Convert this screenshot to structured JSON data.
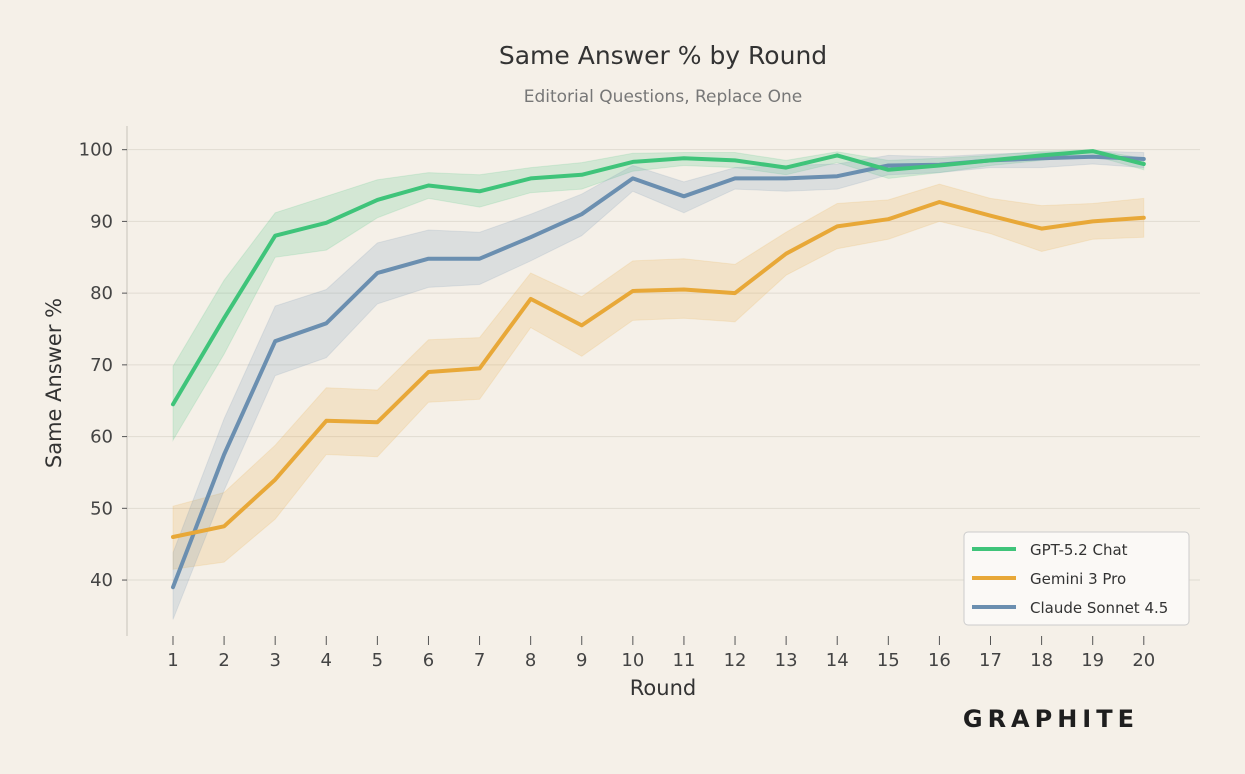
{
  "chart_data": {
    "type": "line",
    "title": "Same Answer % by Round",
    "subtitle": "Editorial Questions, Replace One",
    "xlabel": "Round",
    "ylabel": "Same Answer %",
    "x": [
      1,
      2,
      3,
      4,
      5,
      6,
      7,
      8,
      9,
      10,
      11,
      12,
      13,
      14,
      15,
      16,
      17,
      18,
      19,
      20
    ],
    "xlim": [
      0.1,
      21.1
    ],
    "ylim": [
      32.2,
      103.3
    ],
    "yticks": [
      40,
      50,
      60,
      70,
      80,
      90,
      100
    ],
    "grid": "horizontal",
    "legend_position": "bottom-right",
    "series": [
      {
        "name": "GPT-5.2 Chat",
        "color": "#3fc47a",
        "values": [
          64.5,
          76.5,
          88.0,
          89.8,
          93.0,
          95.0,
          94.2,
          96.0,
          96.5,
          98.3,
          98.8,
          98.5,
          97.5,
          99.2,
          97.2,
          97.8,
          98.5,
          99.2,
          99.8,
          98.0
        ],
        "lower": [
          59.5,
          71.5,
          85.0,
          86.0,
          90.5,
          93.2,
          92.0,
          94.0,
          94.5,
          97.0,
          97.8,
          97.5,
          96.5,
          98.2,
          96.0,
          96.8,
          97.8,
          98.5,
          99.2,
          97.2
        ],
        "upper": [
          69.8,
          81.8,
          91.2,
          93.5,
          95.8,
          96.8,
          96.5,
          97.5,
          98.2,
          99.5,
          99.6,
          99.6,
          98.5,
          99.7,
          98.5,
          98.8,
          99.2,
          99.8,
          100.0,
          98.8
        ]
      },
      {
        "name": "Gemini 3 Pro",
        "color": "#e8a838",
        "values": [
          46.0,
          47.5,
          54.0,
          62.2,
          62.0,
          69.0,
          69.5,
          79.2,
          75.5,
          80.3,
          80.5,
          80.0,
          85.5,
          89.3,
          90.3,
          92.7,
          90.8,
          89.0,
          90.0,
          90.5
        ],
        "lower": [
          41.5,
          42.5,
          48.5,
          57.5,
          57.2,
          64.8,
          65.2,
          75.2,
          71.2,
          76.2,
          76.5,
          76.0,
          82.5,
          86.2,
          87.5,
          90.0,
          88.3,
          85.8,
          87.5,
          87.8
        ],
        "upper": [
          50.3,
          52.2,
          58.8,
          66.8,
          66.5,
          73.5,
          73.8,
          82.8,
          79.5,
          84.5,
          84.8,
          84.0,
          88.5,
          92.5,
          93.0,
          95.2,
          93.2,
          92.2,
          92.5,
          93.2
        ]
      },
      {
        "name": "Claude Sonnet 4.5",
        "color": "#6b8fb0",
        "values": [
          39.0,
          57.5,
          73.3,
          75.8,
          82.8,
          84.8,
          84.8,
          87.8,
          91.0,
          96.0,
          93.5,
          96.0,
          96.0,
          96.3,
          97.8,
          97.9,
          98.5,
          98.8,
          99.0,
          98.7
        ],
        "lower": [
          34.5,
          52.5,
          68.5,
          71.0,
          78.5,
          80.8,
          81.2,
          84.5,
          88.0,
          94.2,
          91.2,
          94.5,
          94.2,
          94.5,
          96.5,
          96.8,
          97.5,
          97.5,
          98.0,
          97.5
        ],
        "upper": [
          43.8,
          62.5,
          78.2,
          80.5,
          87.0,
          88.8,
          88.5,
          91.0,
          93.8,
          97.8,
          95.5,
          97.5,
          97.8,
          98.0,
          99.2,
          99.0,
          99.4,
          99.6,
          99.8,
          99.6
        ]
      }
    ]
  },
  "branding": {
    "logo_text": "GRAPHITE",
    "logo_icon": "graphite-wordmark"
  },
  "colors": {
    "background": "#f5f0e8",
    "grid": "#e0dbd2",
    "axis": "#cfcac2",
    "legend_bg": "#fbf9f6",
    "legend_border": "#cccccc"
  }
}
